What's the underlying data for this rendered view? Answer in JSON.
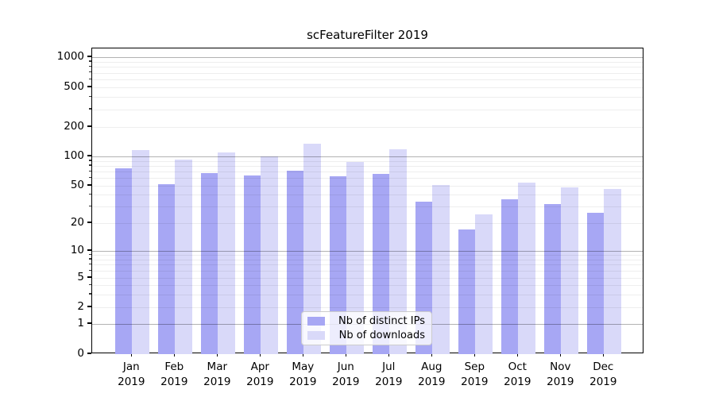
{
  "title": "scFeatureFilter 2019",
  "legend": {
    "items": [
      {
        "label": "Nb of distinct IPs",
        "color": "#a7a7f4"
      },
      {
        "label": "Nb of downloads",
        "color": "#d9d9f9"
      }
    ]
  },
  "axes": {
    "y_tick_labels": [
      "0",
      "1",
      "2",
      "5",
      "10",
      "20",
      "50",
      "100",
      "200",
      "500",
      "1000"
    ],
    "x_tick_line1": [
      "Jan",
      "Feb",
      "Mar",
      "Apr",
      "May",
      "Jun",
      "Jul",
      "Aug",
      "Sep",
      "Oct",
      "Nov",
      "Dec"
    ],
    "x_tick_line2": "2019"
  },
  "colors": {
    "series_ips": "#a7a7f4",
    "series_downloads": "#d9d9f9",
    "major_grid": "rgba(0,0,0,0.30)",
    "minor_grid": "rgba(0,0,0,0.065)"
  },
  "chart_data": {
    "type": "bar",
    "title": "scFeatureFilter 2019",
    "categories": [
      "Jan 2019",
      "Feb 2019",
      "Mar 2019",
      "Apr 2019",
      "May 2019",
      "Jun 2019",
      "Jul 2019",
      "Aug 2019",
      "Sep 2019",
      "Oct 2019",
      "Nov 2019",
      "Dec 2019"
    ],
    "series": [
      {
        "name": "Nb of distinct IPs",
        "color": "#a7a7f4",
        "values": [
          75,
          52,
          68,
          64,
          71,
          63,
          66,
          34,
          17,
          36,
          32,
          26
        ]
      },
      {
        "name": "Nb of downloads",
        "color": "#d9d9f9",
        "values": [
          117,
          92,
          110,
          100,
          136,
          87,
          118,
          51,
          25,
          54,
          48,
          46
        ]
      }
    ],
    "xlabel": "",
    "ylabel": "",
    "yscale": "symlog",
    "yticks": [
      0,
      1,
      2,
      5,
      10,
      20,
      50,
      100,
      200,
      500,
      1000
    ],
    "ylim": [
      0,
      1300
    ],
    "major_gridlines_at": [
      1,
      10,
      100,
      1000
    ],
    "minor_gridlines_at": [
      2,
      3,
      4,
      5,
      6,
      7,
      8,
      9,
      20,
      30,
      40,
      50,
      60,
      70,
      80,
      90,
      200,
      300,
      400,
      500,
      600,
      700,
      800,
      900
    ],
    "grid": true,
    "legend_position": "lower center"
  }
}
